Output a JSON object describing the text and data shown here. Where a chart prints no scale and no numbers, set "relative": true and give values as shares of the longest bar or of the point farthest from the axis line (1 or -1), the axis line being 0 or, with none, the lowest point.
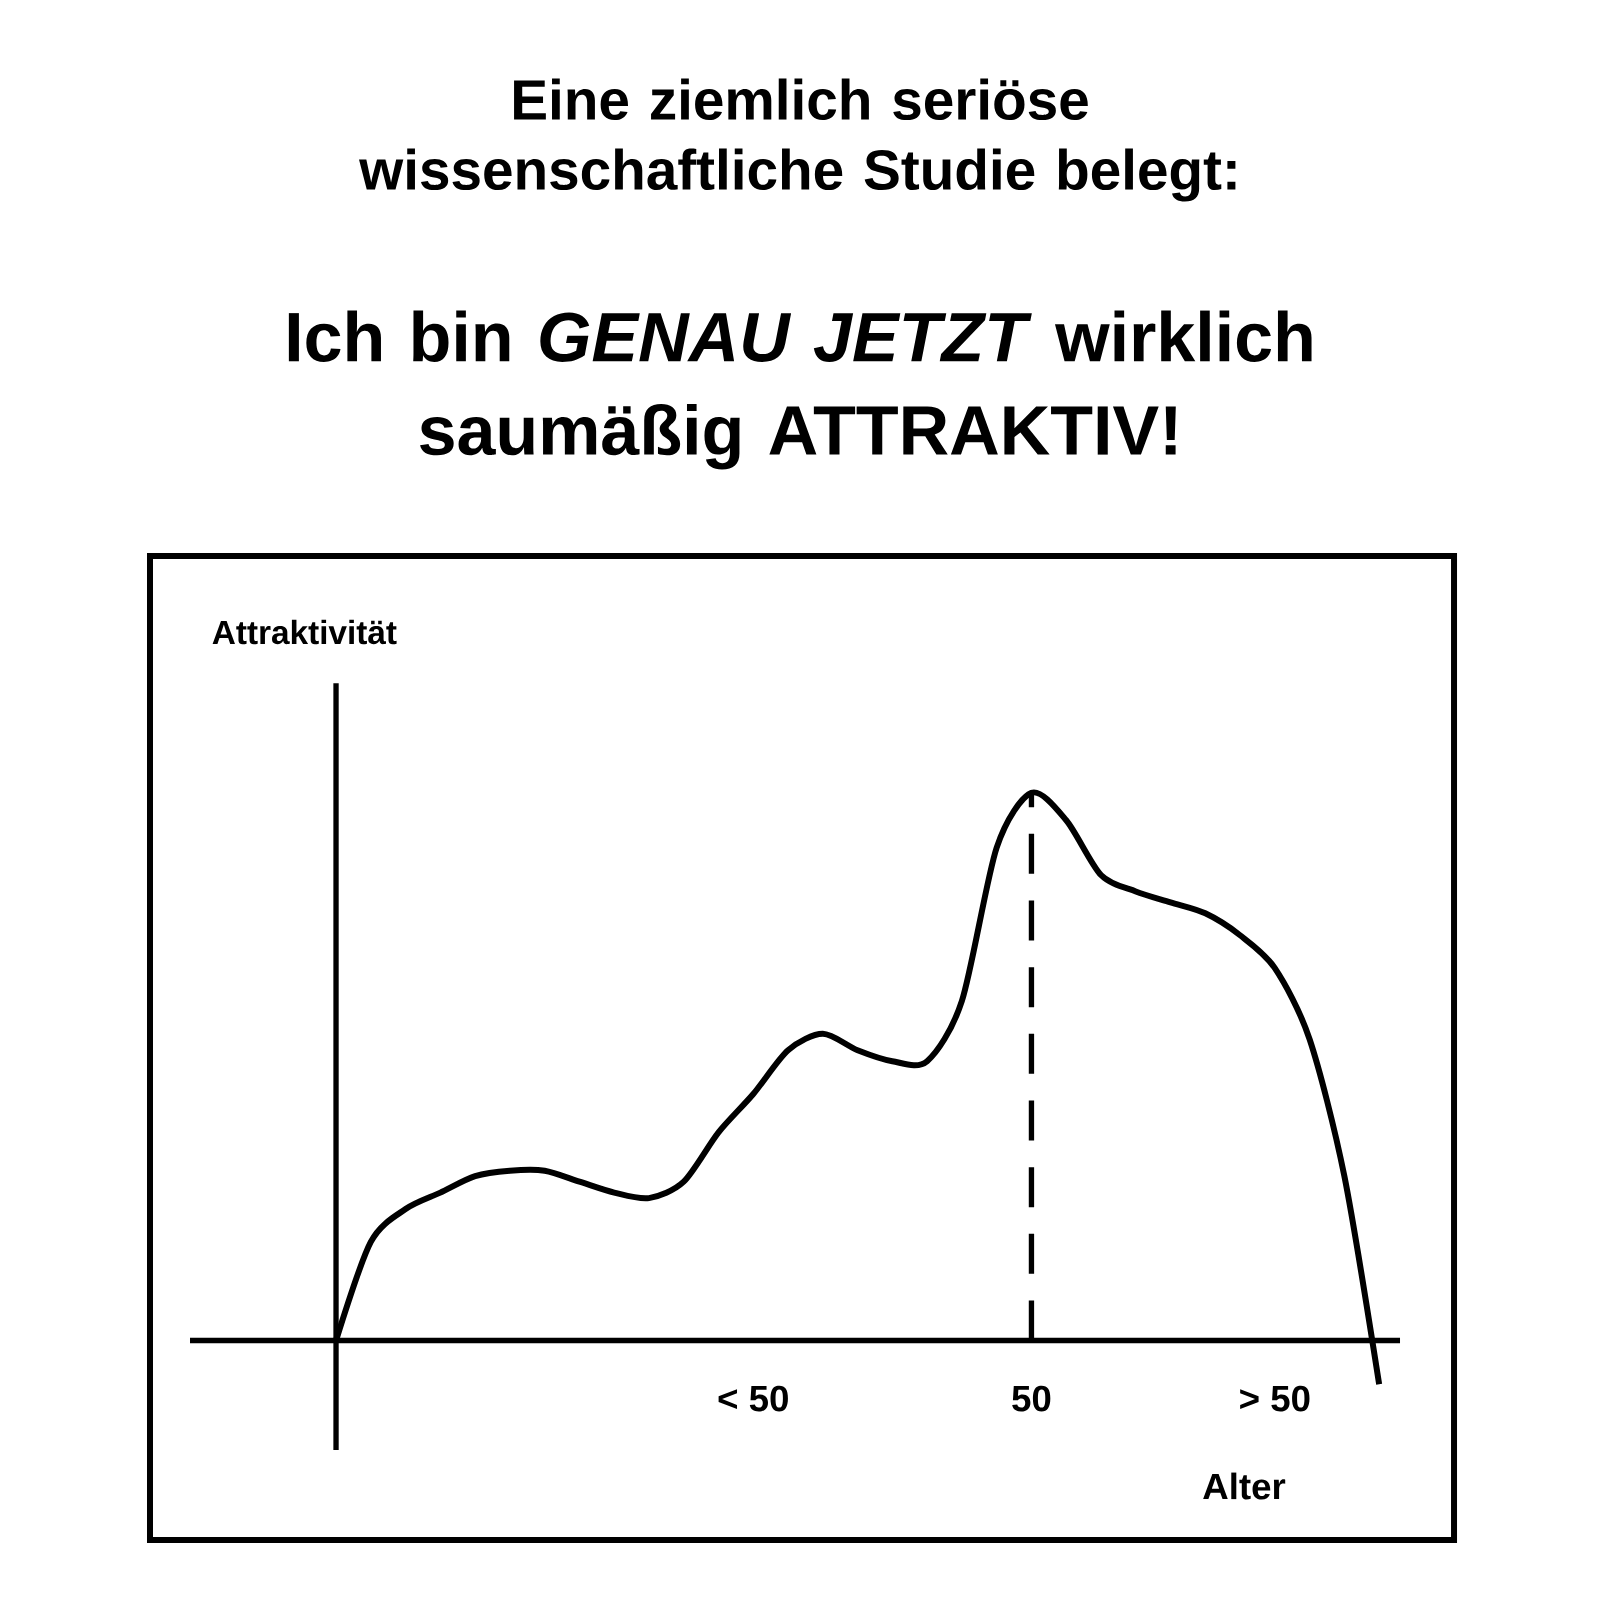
{
  "chart_data": {
    "type": "line",
    "title": "Eine ziemlich seriöse wissenschaftliche Studie belegt:",
    "subtitle": "Ich bin *GENAU JETZT* wirklich saumäßig ATTRAKTIV!",
    "xlabel": "Alter",
    "ylabel": "Attraktivität",
    "relative": true,
    "categories": [
      null,
      null,
      null,
      null,
      null,
      null,
      null,
      null,
      null,
      null,
      null,
      null,
      "< 50",
      null,
      null,
      null,
      null,
      null,
      null,
      null,
      "50",
      null,
      null,
      null,
      null,
      null,
      null,
      "> 50",
      null,
      null,
      null
    ],
    "series": [
      {
        "color": "#000000",
        "values": [
          0,
          0.18,
          0.24,
          0.27,
          0.3,
          0.31,
          0.31,
          0.29,
          0.27,
          0.26,
          0.29,
          0.38,
          0.45,
          0.53,
          0.56,
          0.53,
          0.51,
          0.51,
          0.62,
          0.9,
          1.0,
          0.95,
          0.85,
          0.82,
          0.8,
          0.78,
          0.74,
          0.68,
          0.55,
          0.3,
          -0.08
        ]
      }
    ],
    "ref_lines": [
      {
        "axis": "x",
        "value": "50",
        "color": "#000000",
        "line_style": "dashed"
      }
    ]
  }
}
